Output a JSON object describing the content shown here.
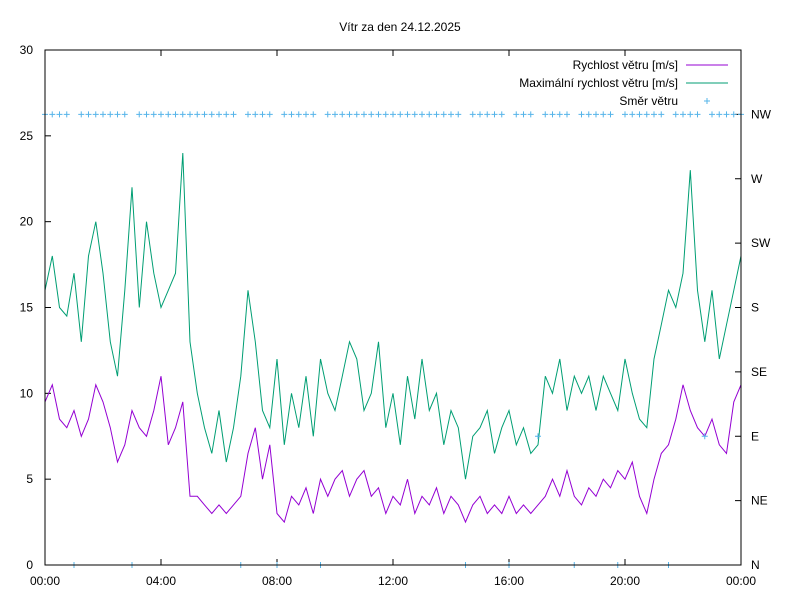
{
  "chart_data": {
    "type": "line",
    "title": "Vítr za den 24.12.2025",
    "xlabel": "",
    "ylabel": "",
    "x_tick_labels": [
      "00:00",
      "04:00",
      "08:00",
      "12:00",
      "16:00",
      "20:00",
      "00:00"
    ],
    "x_range_hours": [
      0,
      24
    ],
    "ylim": [
      0,
      30
    ],
    "y_ticks": [
      0,
      5,
      10,
      15,
      20,
      25,
      30
    ],
    "y2_ticks": [
      "N",
      "NE",
      "E",
      "SE",
      "S",
      "SW",
      "W",
      "NW"
    ],
    "y2lim": [
      0,
      8
    ],
    "grid": false,
    "legend_position": "top-right",
    "sample_interval_minutes": 15,
    "series": [
      {
        "name": "Rychlost větru [m/s]",
        "color": "#9400d3",
        "style": "line",
        "axis": "y",
        "values": [
          9.5,
          10.5,
          8.5,
          8,
          9,
          7.5,
          8.5,
          10.5,
          9.5,
          8,
          6,
          7,
          9,
          8,
          7.5,
          9,
          11,
          7,
          8,
          9.5,
          4,
          4,
          3.5,
          3,
          3.5,
          3,
          3.5,
          4,
          6.5,
          8,
          5,
          7,
          3,
          2.5,
          4,
          3.5,
          4.5,
          3,
          5,
          4,
          5,
          5.5,
          4,
          5,
          5.5,
          4,
          4.5,
          3,
          4,
          3.5,
          5,
          3,
          4,
          3.5,
          4.5,
          3,
          4,
          3.5,
          2.5,
          3.5,
          4,
          3,
          3.5,
          3,
          4,
          3,
          3.5,
          3,
          3.5,
          4,
          5,
          4,
          5.5,
          4,
          3.5,
          4.5,
          4,
          5,
          4.5,
          5.5,
          5,
          6,
          4,
          3,
          5,
          6.5,
          7,
          8.5,
          10.5,
          9,
          8,
          7.5,
          8.5,
          7,
          6.5,
          9.5,
          10.5
        ]
      },
      {
        "name": "Maximální rychlost větru [m/s]",
        "color": "#009e73",
        "style": "line",
        "axis": "y",
        "values": [
          16,
          18,
          15,
          14.5,
          17,
          13,
          18,
          20,
          17,
          13,
          11,
          16,
          22,
          15,
          20,
          17,
          15,
          16,
          17,
          24,
          13,
          10,
          8,
          6.5,
          9,
          6,
          8,
          11,
          16,
          13,
          9,
          8,
          12,
          7,
          10,
          8,
          11,
          7.5,
          12,
          10,
          9,
          11,
          13,
          12,
          9,
          10,
          13,
          8,
          10,
          7,
          11,
          8.5,
          12,
          9,
          10,
          7,
          9,
          8,
          5,
          7.5,
          8,
          9,
          6.5,
          8,
          9,
          7,
          8,
          6.5,
          7,
          11,
          10,
          12,
          9,
          11,
          10,
          11,
          9,
          11,
          10,
          9,
          12,
          10,
          8.5,
          8,
          12,
          14,
          16,
          15,
          17,
          23,
          16,
          13,
          16,
          12,
          14,
          16,
          18
        ]
      },
      {
        "name": "Směr větru",
        "color": "#56b4e9",
        "style": "points",
        "axis": "y2",
        "values": [
          7,
          7,
          7,
          7,
          0,
          7,
          7,
          7,
          7,
          7,
          7,
          7,
          0,
          7,
          7,
          7,
          7,
          7,
          7,
          7,
          7,
          7,
          7,
          7,
          7,
          7,
          7,
          0,
          7,
          7,
          7,
          7,
          0,
          7,
          7,
          7,
          7,
          7,
          0,
          7,
          7,
          7,
          7,
          7,
          7,
          7,
          7,
          7,
          7,
          7,
          7,
          7,
          7,
          7,
          7,
          7,
          7,
          7,
          0,
          7,
          7,
          7,
          7,
          7,
          0,
          7,
          7,
          7,
          2,
          7,
          7,
          7,
          7,
          0,
          7,
          7,
          7,
          7,
          7,
          0,
          7,
          7,
          7,
          7,
          7,
          7,
          0,
          7,
          7,
          7,
          7,
          2,
          7,
          7,
          7,
          7,
          7
        ]
      }
    ]
  }
}
